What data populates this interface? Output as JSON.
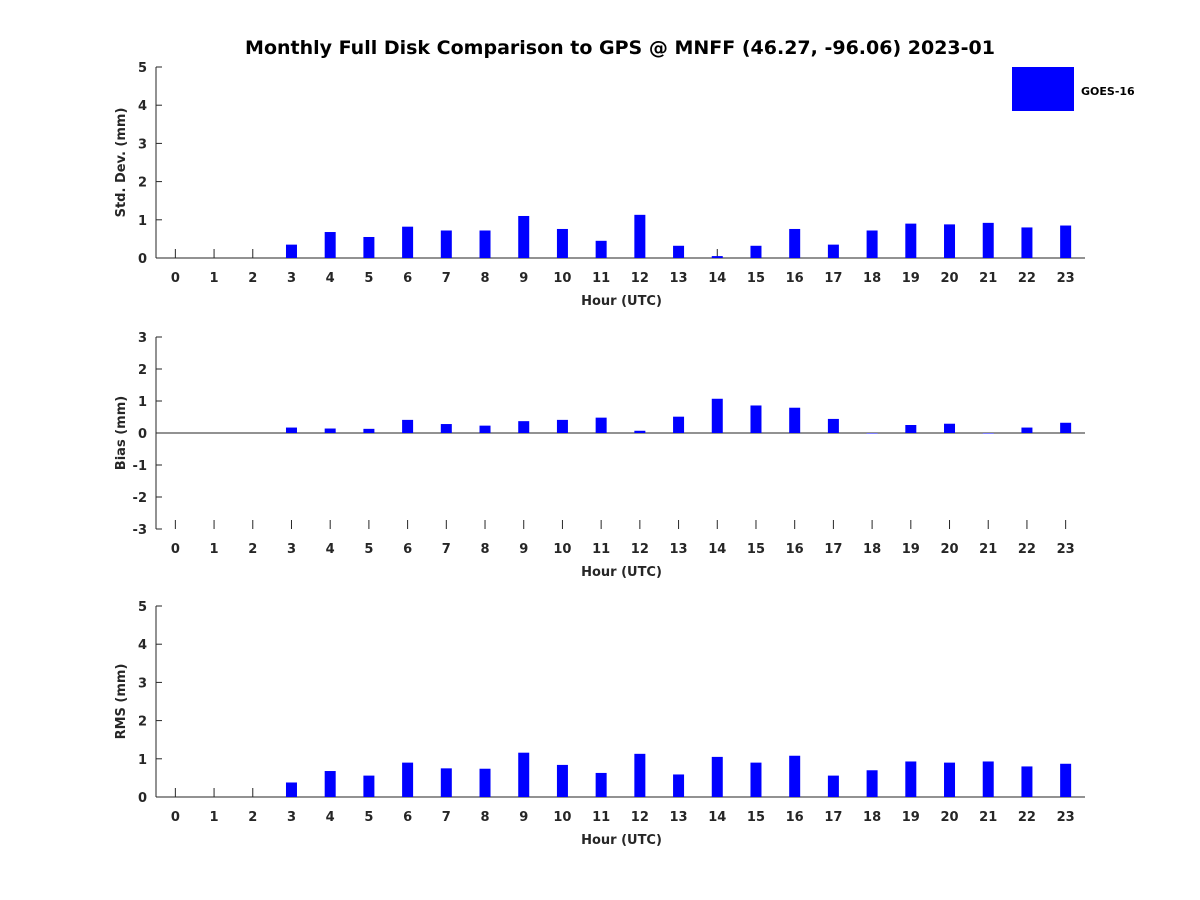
{
  "chart_data": {
    "title": "Monthly Full Disk Comparison to GPS @ MNFF (46.27, -96.06) 2023-01",
    "legend": {
      "entries": [
        "GOES-16"
      ],
      "position": "top-right",
      "color": "#0000ff"
    },
    "panels": [
      {
        "type": "bar",
        "ylabel": "Std. Dev. (mm)",
        "xlabel": "Hour (UTC)",
        "ylim": [
          0,
          5
        ],
        "yticks": [
          "0",
          "1",
          "2",
          "3",
          "4",
          "5"
        ],
        "x": [
          0,
          1,
          2,
          3,
          4,
          5,
          6,
          7,
          8,
          9,
          10,
          11,
          12,
          13,
          14,
          15,
          16,
          17,
          18,
          19,
          20,
          21,
          22,
          23
        ],
        "series": [
          {
            "name": "GOES-16",
            "color": "#0000ff",
            "values": [
              null,
              null,
              null,
              0.35,
              0.68,
              0.55,
              0.82,
              0.72,
              0.72,
              1.1,
              0.76,
              0.45,
              1.13,
              0.32,
              0.05,
              0.32,
              0.76,
              0.35,
              0.72,
              0.9,
              0.88,
              0.92,
              0.8,
              0.85
            ]
          }
        ]
      },
      {
        "type": "bar",
        "ylabel": "Bias (mm)",
        "xlabel": "Hour (UTC)",
        "ylim": [
          -3,
          3
        ],
        "yticks": [
          "-3",
          "-2",
          "-1",
          "0",
          "1",
          "2",
          "3"
        ],
        "x": [
          0,
          1,
          2,
          3,
          4,
          5,
          6,
          7,
          8,
          9,
          10,
          11,
          12,
          13,
          14,
          15,
          16,
          17,
          18,
          19,
          20,
          21,
          22,
          23
        ],
        "series": [
          {
            "name": "GOES-16",
            "color": "#0000ff",
            "values": [
              null,
              null,
              null,
              0.17,
              0.14,
              0.13,
              0.41,
              0.28,
              0.23,
              0.37,
              0.41,
              0.48,
              0.07,
              0.51,
              1.07,
              0.86,
              0.79,
              0.44,
              0.0,
              0.25,
              0.29,
              0.0,
              0.17,
              0.32
            ]
          }
        ]
      },
      {
        "type": "bar",
        "ylabel": "RMS (mm)",
        "xlabel": "Hour (UTC)",
        "ylim": [
          0,
          5
        ],
        "yticks": [
          "0",
          "1",
          "2",
          "3",
          "4",
          "5"
        ],
        "x": [
          0,
          1,
          2,
          3,
          4,
          5,
          6,
          7,
          8,
          9,
          10,
          11,
          12,
          13,
          14,
          15,
          16,
          17,
          18,
          19,
          20,
          21,
          22,
          23
        ],
        "series": [
          {
            "name": "GOES-16",
            "color": "#0000ff",
            "values": [
              null,
              null,
              null,
              0.38,
              0.68,
              0.56,
              0.9,
              0.75,
              0.74,
              1.16,
              0.84,
              0.63,
              1.13,
              0.59,
              1.05,
              0.9,
              1.08,
              0.56,
              0.7,
              0.93,
              0.9,
              0.93,
              0.8,
              0.87
            ]
          }
        ]
      }
    ]
  }
}
